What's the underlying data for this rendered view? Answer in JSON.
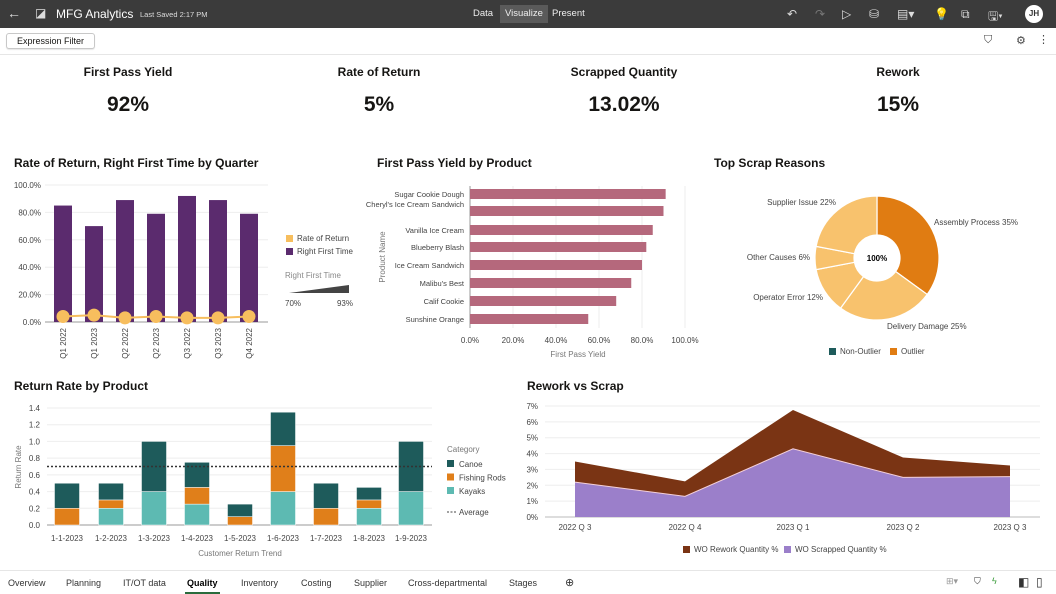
{
  "header": {
    "title": "MFG Analytics",
    "last_saved": "Last Saved 2:17 PM",
    "modes": [
      "Data",
      "Visualize",
      "Present"
    ],
    "active_mode": "Visualize",
    "user_initials": "JH"
  },
  "toolbar": {
    "expression_filter": "Expression Filter"
  },
  "kpis": [
    {
      "label": "First Pass Yield",
      "value": "92%"
    },
    {
      "label": "Rate of Return",
      "value": "5%"
    },
    {
      "label": "Scrapped Quantity",
      "value": "13.02%"
    },
    {
      "label": "Rework",
      "value": "15%"
    }
  ],
  "tabs": [
    "Overview",
    "Planning",
    "IT/OT data",
    "Quality",
    "Inventory",
    "Costing",
    "Supplier",
    "Cross-departmental",
    "Stages"
  ],
  "active_tab": "Quality",
  "colors": {
    "purple": "#5b2b6e",
    "gold": "#f7be5e",
    "rose": "#b5687c",
    "canoe": "#1e5b5b",
    "fishing": "#e07f1a",
    "kayaks": "#5dbab2",
    "rework": "#7a3414",
    "scrapped": "#9b7fca",
    "outlier_dark": "#e07c12",
    "outlier_light": "#f8c26d"
  },
  "chart_data": [
    {
      "type": "bar",
      "title": "Rate of Return, Right First Time by Quarter",
      "categories": [
        "Q1 2022",
        "Q1 2023",
        "Q2 2022",
        "Q2 2023",
        "Q3 2022",
        "Q3 2023",
        "Q4 2022"
      ],
      "yticks": [
        "0.0%",
        "20.0%",
        "40.0%",
        "60.0%",
        "80.0%",
        "100.0%"
      ],
      "ylim": [
        0,
        100
      ],
      "series": [
        {
          "name": "Right First Time",
          "values": [
            85,
            70,
            89,
            79,
            92,
            89,
            79
          ]
        },
        {
          "name": "Rate of Return",
          "values": [
            4,
            5,
            3,
            4,
            3,
            3,
            4
          ]
        }
      ],
      "size_legend": {
        "title": "Right First Time",
        "min": "70%",
        "max": "93%"
      }
    },
    {
      "type": "bar",
      "title": "First Pass Yield by Product",
      "orientation": "horizontal",
      "categories": [
        "Sugar Cookie Dough",
        "Cheryl's Ice Cream Sandwich",
        "Vanilla Ice Cream",
        "Blueberry Blash",
        "Ice Cream Sandwich",
        "Malibu's Best",
        "Calif Cookie",
        "Sunshine Orange"
      ],
      "values": [
        91,
        90,
        85,
        82,
        80,
        75,
        68,
        55
      ],
      "xlim": [
        0,
        100
      ],
      "xticks": [
        "0.0%",
        "20.0%",
        "40.0%",
        "60.0%",
        "80.0%",
        "100.0%"
      ],
      "xlabel": "First Pass Yield",
      "ylabel": "Product Name"
    },
    {
      "type": "pie",
      "title": "Top Scrap Reasons",
      "center_label": "100%",
      "slices": [
        {
          "label": "Assembly Process 35%",
          "value": 35,
          "group": "Outlier"
        },
        {
          "label": "Delivery Damage 25%",
          "value": 25,
          "group": "Non-Outlier"
        },
        {
          "label": "Operator Error 12%",
          "value": 12,
          "group": "Non-Outlier"
        },
        {
          "label": "Other Causes 6%",
          "value": 6,
          "group": "Non-Outlier"
        },
        {
          "label": "Supplier Issue 22%",
          "value": 22,
          "group": "Non-Outlier"
        }
      ],
      "legend": [
        "Non-Outlier",
        "Outlier"
      ]
    },
    {
      "type": "bar",
      "stacked": true,
      "title": "Return Rate by Product",
      "categories": [
        "1-1-2023",
        "1-2-2023",
        "1-3-2023",
        "1-4-2023",
        "1-5-2023",
        "1-6-2023",
        "1-7-2023",
        "1-8-2023",
        "1-9-2023"
      ],
      "series": [
        {
          "name": "Kayaks",
          "values": [
            0,
            0.2,
            0.4,
            0.25,
            0,
            0.4,
            0,
            0.2,
            0.4
          ]
        },
        {
          "name": "Fishing Rods",
          "values": [
            0.2,
            0.1,
            0,
            0.2,
            0.1,
            0.55,
            0.2,
            0.1,
            0
          ]
        },
        {
          "name": "Canoe",
          "values": [
            0.3,
            0.2,
            0.6,
            0.3,
            0.15,
            0.4,
            0.3,
            0.15,
            0.6
          ]
        }
      ],
      "average": 0.7,
      "average_label": "Average",
      "legend_title": "Category",
      "legend_order": [
        "Canoe",
        "Fishing Rods",
        "Kayaks"
      ],
      "yticks": [
        "0.0",
        "0.2",
        "0.4",
        "0.6",
        "0.8",
        "1.0",
        "1.2",
        "1.4"
      ],
      "ylim": [
        0,
        1.4
      ],
      "xlabel": "Customer Return Trend",
      "ylabel": "Return Rate"
    },
    {
      "type": "area",
      "stacked": true,
      "title": "Rework vs Scrap",
      "categories": [
        "2022 Q 3",
        "2022 Q 4",
        "2023 Q 1",
        "2023 Q 2",
        "2023 Q 3"
      ],
      "series": [
        {
          "name": "WO Scrapped Quantity %",
          "values": [
            2.2,
            1.3,
            4.3,
            2.5,
            2.55
          ]
        },
        {
          "name": "WO Rework Quantity %",
          "values": [
            1.3,
            0.95,
            2.45,
            1.25,
            0.7
          ]
        }
      ],
      "legend_order": [
        "WO Rework Quantity %",
        "WO Scrapped Quantity %"
      ],
      "yticks": [
        "0%",
        "1%",
        "2%",
        "3%",
        "4%",
        "5%",
        "6%",
        "7%"
      ],
      "ylim": [
        0,
        7
      ]
    }
  ]
}
